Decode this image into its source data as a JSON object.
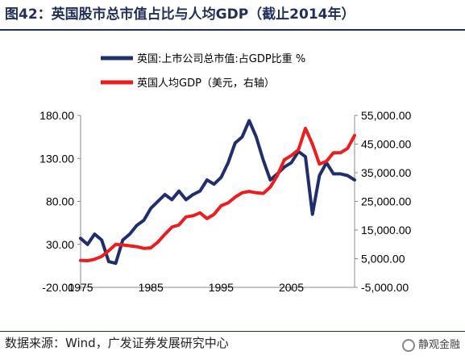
{
  "figure": {
    "title": "图42：英国股市总市值占比与人均GDP（截止2014年）",
    "source": "数据来源：Wind，广发证券发展研究中心",
    "watermark": "静观金融"
  },
  "colors": {
    "title": "#1f2f5a",
    "series_left": "#1f2f6e",
    "series_right": "#ee1c1c"
  },
  "chart_data": {
    "type": "line",
    "x_ticks": [
      "1975",
      "1985",
      "1995",
      "2005"
    ],
    "xlim": [
      1975,
      2014
    ],
    "y_left": {
      "ticks": [
        "-20.00",
        "30.00",
        "80.00",
        "130.00",
        "180.00"
      ],
      "ylim": [
        -20,
        180
      ]
    },
    "y_right": {
      "ticks": [
        "-5,000.00",
        "5,000.00",
        "15,000.00",
        "25,000.00",
        "35,000.00",
        "45,000.00",
        "55,000.00"
      ],
      "ylim": [
        -5000,
        55000
      ]
    },
    "grid": false,
    "legend_position": "top",
    "series": [
      {
        "name": "英国:上市公司总市值:占GDP比重 %",
        "axis": "left",
        "x": [
          1975,
          1976,
          1977,
          1978,
          1979,
          1980,
          1981,
          1982,
          1983,
          1984,
          1985,
          1986,
          1987,
          1988,
          1989,
          1990,
          1991,
          1992,
          1993,
          1994,
          1995,
          1996,
          1997,
          1998,
          1999,
          2000,
          2001,
          2002,
          2003,
          2004,
          2005,
          2006,
          2007,
          2008,
          2009,
          2010,
          2011,
          2012,
          2013,
          2014
        ],
        "values": [
          37,
          30,
          42,
          35,
          10,
          8,
          35,
          42,
          52,
          58,
          72,
          80,
          88,
          82,
          92,
          82,
          88,
          92,
          105,
          100,
          108,
          125,
          148,
          155,
          174,
          155,
          128,
          105,
          112,
          120,
          125,
          138,
          132,
          65,
          110,
          125,
          112,
          112,
          110,
          105
        ]
      },
      {
        "name": "英国人均GDP（美元，右轴）",
        "axis": "right",
        "x": [
          1975,
          1976,
          1977,
          1978,
          1979,
          1980,
          1981,
          1982,
          1983,
          1984,
          1985,
          1986,
          1987,
          1988,
          1989,
          1990,
          1991,
          1992,
          1993,
          1994,
          1995,
          1996,
          1997,
          1998,
          1999,
          2000,
          2001,
          2002,
          2003,
          2004,
          2005,
          2006,
          2007,
          2008,
          2009,
          2010,
          2011,
          2012,
          2013,
          2014
        ],
        "values": [
          4400,
          4300,
          4800,
          5800,
          7800,
          10000,
          9800,
          9500,
          9200,
          8600,
          8800,
          10800,
          13500,
          16000,
          16800,
          19600,
          20000,
          21000,
          19000,
          20500,
          23500,
          24500,
          26500,
          28000,
          28500,
          28000,
          27800,
          30000,
          34000,
          39500,
          41000,
          43000,
          50500,
          45000,
          38000,
          39000,
          42000,
          42000,
          43500,
          48000
        ]
      }
    ]
  }
}
